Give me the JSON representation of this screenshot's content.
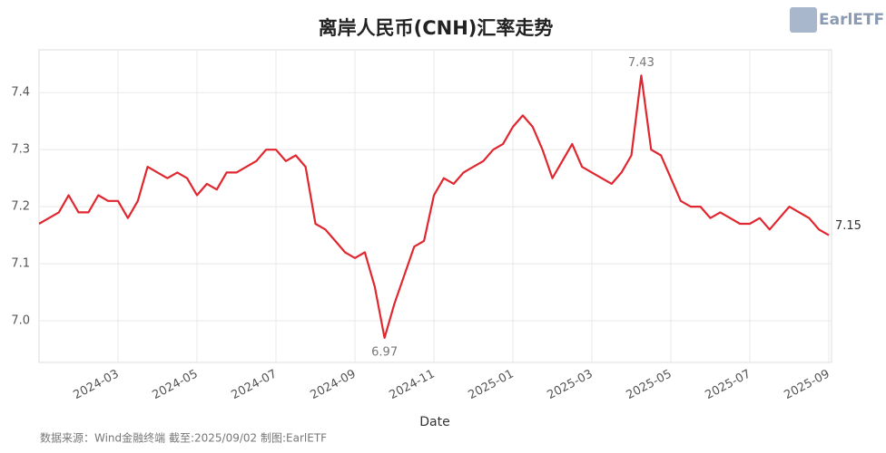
{
  "chart_data": {
    "type": "line",
    "title": "离岸人民币(CNH)汇率走势",
    "x_label": "Date",
    "source": "数据来源：Wind金融终端 截至:2025/09/02 制图:EarlETF",
    "logo": "EarlETF",
    "x": [
      "2024-01",
      "2024-01",
      "2024-01",
      "2024-01",
      "2024-02",
      "2024-02",
      "2024-02",
      "2024-02",
      "2024-03",
      "2024-03",
      "2024-03",
      "2024-03",
      "2024-04",
      "2024-04",
      "2024-04",
      "2024-04",
      "2024-05",
      "2024-05",
      "2024-05",
      "2024-05",
      "2024-06",
      "2024-06",
      "2024-06",
      "2024-06",
      "2024-07",
      "2024-07",
      "2024-07",
      "2024-07",
      "2024-08",
      "2024-08",
      "2024-08",
      "2024-08",
      "2024-09",
      "2024-09",
      "2024-09",
      "2024-09",
      "2024-10",
      "2024-10",
      "2024-10",
      "2024-10",
      "2024-11",
      "2024-11",
      "2024-11",
      "2024-11",
      "2024-12",
      "2024-12",
      "2024-12",
      "2024-12",
      "2025-01",
      "2025-01",
      "2025-01",
      "2025-01",
      "2025-02",
      "2025-02",
      "2025-02",
      "2025-02",
      "2025-03",
      "2025-03",
      "2025-03",
      "2025-03",
      "2025-04",
      "2025-04",
      "2025-04",
      "2025-04",
      "2025-05",
      "2025-05",
      "2025-05",
      "2025-05",
      "2025-06",
      "2025-06",
      "2025-06",
      "2025-06",
      "2025-07",
      "2025-07",
      "2025-07",
      "2025-07",
      "2025-08",
      "2025-08",
      "2025-08",
      "2025-08",
      "2025-09"
    ],
    "series": [
      {
        "name": "CNH",
        "color": "#e0262e",
        "values": [
          7.17,
          7.18,
          7.19,
          7.22,
          7.19,
          7.19,
          7.22,
          7.21,
          7.21,
          7.18,
          7.21,
          7.27,
          7.26,
          7.25,
          7.26,
          7.25,
          7.22,
          7.24,
          7.23,
          7.26,
          7.26,
          7.27,
          7.28,
          7.3,
          7.3,
          7.28,
          7.29,
          7.27,
          7.17,
          7.16,
          7.14,
          7.12,
          7.11,
          7.12,
          7.06,
          6.97,
          7.03,
          7.08,
          7.13,
          7.14,
          7.22,
          7.25,
          7.24,
          7.26,
          7.27,
          7.28,
          7.3,
          7.31,
          7.34,
          7.36,
          7.34,
          7.3,
          7.25,
          7.28,
          7.31,
          7.27,
          7.26,
          7.25,
          7.24,
          7.26,
          7.29,
          7.43,
          7.3,
          7.29,
          7.25,
          7.21,
          7.2,
          7.2,
          7.18,
          7.19,
          7.18,
          7.17,
          7.17,
          7.18,
          7.16,
          7.18,
          7.2,
          7.19,
          7.18,
          7.16,
          7.15
        ],
        "value_labels": [
          null,
          null,
          null,
          null,
          null,
          null,
          null,
          null,
          null,
          null,
          null,
          null,
          null,
          null,
          null,
          null,
          null,
          null,
          null,
          null,
          null,
          null,
          null,
          null,
          null,
          null,
          null,
          null,
          null,
          null,
          null,
          null,
          null,
          null,
          null,
          "6.97",
          null,
          null,
          null,
          null,
          null,
          null,
          null,
          null,
          null,
          null,
          null,
          null,
          null,
          null,
          null,
          null,
          null,
          null,
          null,
          null,
          null,
          null,
          null,
          null,
          null,
          "7.43",
          null,
          null,
          null,
          null,
          null,
          null,
          null,
          null,
          null,
          null,
          null,
          null,
          null,
          null,
          null,
          null,
          null,
          null,
          "7.15"
        ]
      }
    ],
    "xlim": [
      "2024-01",
      "2025-09"
    ],
    "xticks": [
      "2024-03",
      "2024-05",
      "2024-07",
      "2024-09",
      "2024-11",
      "2025-01",
      "2025-03",
      "2025-05",
      "2025-07",
      "2025-09"
    ],
    "ylim": [
      6.927,
      7.475
    ],
    "yticks": [
      {
        "value": 7,
        "label": "7.0"
      },
      7.1,
      7.2,
      7.3,
      7.4
    ],
    "grid": true
  }
}
